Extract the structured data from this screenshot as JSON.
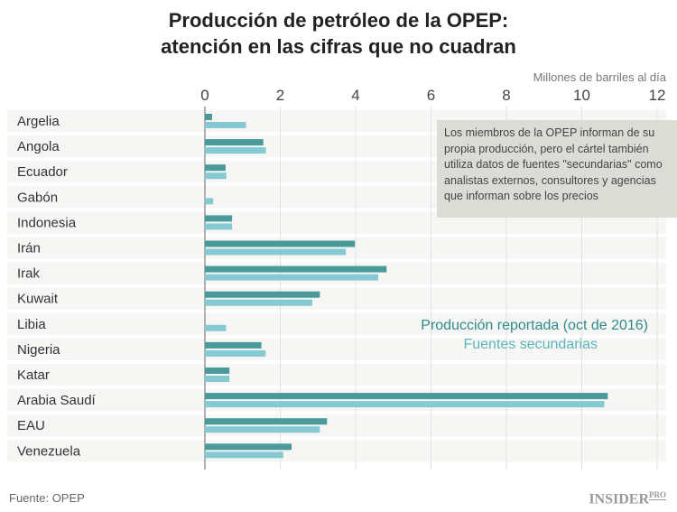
{
  "chart_data": {
    "type": "bar",
    "title": "Producción de petróleo de la OPEP: atención en las cifras que no cuadran",
    "title_lines": [
      "Producción de petróleo de la OPEP:",
      "atención en las cifras que no cuadran"
    ],
    "xlabel": "Millones de barriles al día",
    "xlim": [
      0,
      12
    ],
    "ticks": [
      0,
      2,
      4,
      6,
      8,
      10,
      12
    ],
    "grid": true,
    "categories": [
      "Argelia",
      "Angola",
      "Ecuador",
      "Gabón",
      "Indonesia",
      "Irán",
      "Irak",
      "Kuwait",
      "Libia",
      "Nigeria",
      "Katar",
      "Arabia Saudí",
      "EAU",
      "Venezuela"
    ],
    "series": [
      {
        "name": "Producción reportada (oct  de 2016)",
        "color": "#4a9a9a",
        "values": [
          0.19,
          1.55,
          0.55,
          null,
          0.72,
          3.98,
          4.82,
          3.05,
          null,
          1.5,
          0.65,
          10.69,
          3.24,
          2.3
        ]
      },
      {
        "name": "Fuentes secundarias",
        "color": "#85cad2",
        "values": [
          1.09,
          1.62,
          0.57,
          0.22,
          0.72,
          3.74,
          4.6,
          2.85,
          0.56,
          1.61,
          0.65,
          10.6,
          3.05,
          2.08
        ]
      }
    ],
    "annotation": "Los miembros de la OPEP informan de su propia producción, pero el cártel también utiliza datos de fuentes \"secundarias\" como analistas externos, consultores y agencias que informan sobre los precios",
    "legend_placement": "right"
  },
  "footer": {
    "source": "Fuente: OPEP",
    "logo": "INSIDER PRO"
  }
}
